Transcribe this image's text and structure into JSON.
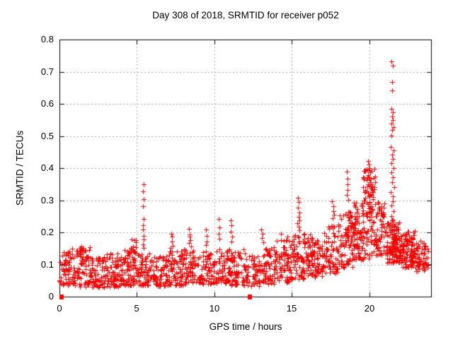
{
  "window": {
    "background": "#ffffff"
  },
  "chart_data": {
    "type": "scatter",
    "title": "Day 308 of 2018, SRMTID for receiver p052",
    "xlabel": "GPS time / hours",
    "ylabel": "SRMTID / TECUs",
    "xlim": [
      0,
      24
    ],
    "ylim": [
      0,
      0.8
    ],
    "x_ticks": {
      "values": [
        0,
        5,
        10,
        15,
        20
      ],
      "labels": [
        "0",
        "5",
        "10",
        "15",
        "20"
      ]
    },
    "y_ticks": {
      "values": [
        0,
        0.1,
        0.2,
        0.3,
        0.4,
        0.5,
        0.6,
        0.7,
        0.8
      ],
      "labels": [
        "0",
        "0.1",
        "0.2",
        "0.3",
        "0.4",
        "0.5",
        "0.6",
        "0.7",
        "0.8"
      ]
    },
    "grid": {
      "show": true,
      "color": "#a9a9a9",
      "dash": [
        2,
        3
      ]
    },
    "border_color": "#000000",
    "legend": null,
    "marker": {
      "shape": "plus",
      "size": 7,
      "color": "#ff0000"
    },
    "axis_squares": [
      [
        0.15,
        0.0
      ],
      [
        12.3,
        0.0
      ]
    ],
    "notable_points": [
      [
        0.02,
        0.051
      ],
      [
        5.42,
        0.35
      ],
      [
        5.4,
        0.327
      ],
      [
        5.43,
        0.303
      ],
      [
        5.41,
        0.281
      ],
      [
        5.44,
        0.242
      ],
      [
        5.4,
        0.222
      ],
      [
        5.38,
        0.208
      ],
      [
        5.45,
        0.19
      ],
      [
        5.42,
        0.178
      ],
      [
        5.39,
        0.163
      ],
      [
        5.46,
        0.152
      ],
      [
        7.22,
        0.196
      ],
      [
        7.28,
        0.186
      ],
      [
        7.25,
        0.171
      ],
      [
        7.31,
        0.158
      ],
      [
        7.19,
        0.151
      ],
      [
        8.38,
        0.212
      ],
      [
        8.42,
        0.193
      ],
      [
        8.4,
        0.186
      ],
      [
        8.45,
        0.176
      ],
      [
        8.35,
        0.166
      ],
      [
        8.48,
        0.156
      ],
      [
        9.48,
        0.208
      ],
      [
        9.52,
        0.19
      ],
      [
        9.5,
        0.172
      ],
      [
        9.45,
        0.161
      ],
      [
        10.28,
        0.242
      ],
      [
        10.32,
        0.216
      ],
      [
        10.3,
        0.196
      ],
      [
        10.35,
        0.181
      ],
      [
        11.05,
        0.238
      ],
      [
        11.12,
        0.221
      ],
      [
        11.08,
        0.203
      ],
      [
        11.15,
        0.186
      ],
      [
        11.1,
        0.172
      ],
      [
        13.05,
        0.208
      ],
      [
        13.12,
        0.196
      ],
      [
        13.08,
        0.182
      ],
      [
        13.15,
        0.169
      ],
      [
        15.4,
        0.308
      ],
      [
        15.45,
        0.294
      ],
      [
        15.42,
        0.276
      ],
      [
        15.48,
        0.262
      ],
      [
        15.44,
        0.249
      ],
      [
        15.5,
        0.238
      ],
      [
        15.38,
        0.228
      ],
      [
        15.46,
        0.217
      ],
      [
        15.52,
        0.206
      ],
      [
        17.62,
        0.296
      ],
      [
        17.7,
        0.282
      ],
      [
        17.67,
        0.267
      ],
      [
        17.73,
        0.255
      ],
      [
        17.65,
        0.243
      ],
      [
        18.58,
        0.388
      ],
      [
        18.6,
        0.368
      ],
      [
        18.59,
        0.349
      ],
      [
        18.62,
        0.332
      ],
      [
        18.56,
        0.316
      ],
      [
        18.63,
        0.301
      ],
      [
        19.92,
        0.421
      ],
      [
        19.97,
        0.412
      ],
      [
        20.02,
        0.401
      ],
      [
        19.87,
        0.395
      ],
      [
        20.08,
        0.386
      ],
      [
        19.95,
        0.377
      ],
      [
        20.12,
        0.368
      ],
      [
        19.84,
        0.362
      ],
      [
        20.05,
        0.356
      ],
      [
        20.18,
        0.349
      ],
      [
        19.9,
        0.342
      ],
      [
        20.1,
        0.336
      ],
      [
        20.22,
        0.329
      ],
      [
        19.93,
        0.322
      ],
      [
        20.15,
        0.316
      ],
      [
        20.0,
        0.311
      ],
      [
        20.26,
        0.304
      ],
      [
        21.45,
        0.731
      ],
      [
        21.52,
        0.719
      ],
      [
        21.5,
        0.669
      ],
      [
        21.48,
        0.641
      ],
      [
        21.42,
        0.585
      ],
      [
        21.55,
        0.574
      ],
      [
        21.47,
        0.561
      ],
      [
        21.53,
        0.549
      ],
      [
        21.44,
        0.538
      ],
      [
        21.58,
        0.528
      ],
      [
        21.5,
        0.519
      ],
      [
        21.46,
        0.501
      ],
      [
        21.4,
        0.466
      ],
      [
        21.56,
        0.454
      ],
      [
        21.49,
        0.441
      ],
      [
        21.52,
        0.429
      ],
      [
        21.43,
        0.416
      ],
      [
        21.57,
        0.401
      ],
      [
        21.45,
        0.386
      ],
      [
        21.54,
        0.371
      ],
      [
        21.48,
        0.356
      ],
      [
        21.6,
        0.341
      ],
      [
        21.41,
        0.326
      ],
      [
        21.51,
        0.312
      ],
      [
        21.55,
        0.297
      ],
      [
        21.46,
        0.283
      ],
      [
        21.59,
        0.266
      ],
      [
        21.44,
        0.251
      ],
      [
        21.53,
        0.239
      ],
      [
        21.49,
        0.226
      ],
      [
        21.62,
        0.212
      ]
    ],
    "scatter_model": {
      "seed": 20181108,
      "bins": [
        [
          0,
          1,
          68,
          0.035,
          0.15
        ],
        [
          1,
          2,
          72,
          0.03,
          0.155
        ],
        [
          2,
          3,
          72,
          0.028,
          0.125
        ],
        [
          3,
          4,
          72,
          0.03,
          0.135
        ],
        [
          4,
          5,
          70,
          0.035,
          0.15
        ],
        [
          5,
          6,
          68,
          0.035,
          0.135
        ],
        [
          6,
          7,
          70,
          0.032,
          0.128
        ],
        [
          7,
          8,
          70,
          0.035,
          0.145
        ],
        [
          8,
          9,
          70,
          0.04,
          0.148
        ],
        [
          9,
          10,
          68,
          0.038,
          0.14
        ],
        [
          10,
          11,
          68,
          0.04,
          0.148
        ],
        [
          11,
          12,
          64,
          0.035,
          0.148
        ],
        [
          12,
          13,
          58,
          0.032,
          0.128
        ],
        [
          13,
          14,
          64,
          0.04,
          0.155
        ],
        [
          14,
          15,
          68,
          0.045,
          0.175
        ],
        [
          15,
          16,
          72,
          0.055,
          0.21
        ],
        [
          16,
          17,
          72,
          0.06,
          0.195
        ],
        [
          17,
          18,
          76,
          0.07,
          0.225
        ],
        [
          18,
          19,
          80,
          0.09,
          0.26
        ],
        [
          19,
          20,
          85,
          0.115,
          0.295
        ],
        [
          20,
          21,
          88,
          0.13,
          0.295
        ],
        [
          21,
          22,
          82,
          0.105,
          0.235
        ],
        [
          22,
          23,
          76,
          0.09,
          0.205
        ],
        [
          23,
          23.9,
          42,
          0.078,
          0.175
        ]
      ],
      "clusters": [
        [
          19.95,
          0.42,
          48,
          0.245,
          0.4
        ],
        [
          21.9,
          0.28,
          42,
          0.105,
          0.2
        ],
        [
          21.5,
          0.14,
          22,
          0.14,
          0.24
        ],
        [
          18.9,
          0.35,
          25,
          0.14,
          0.27
        ],
        [
          22.65,
          0.3,
          22,
          0.1,
          0.185
        ],
        [
          23.5,
          0.35,
          14,
          0.085,
          0.17
        ],
        [
          4.75,
          0.25,
          14,
          0.09,
          0.185
        ],
        [
          1.45,
          0.12,
          8,
          0.1,
          0.168
        ],
        [
          14.5,
          0.4,
          10,
          0.12,
          0.205
        ],
        [
          16.2,
          0.3,
          16,
          0.12,
          0.21
        ]
      ]
    }
  }
}
